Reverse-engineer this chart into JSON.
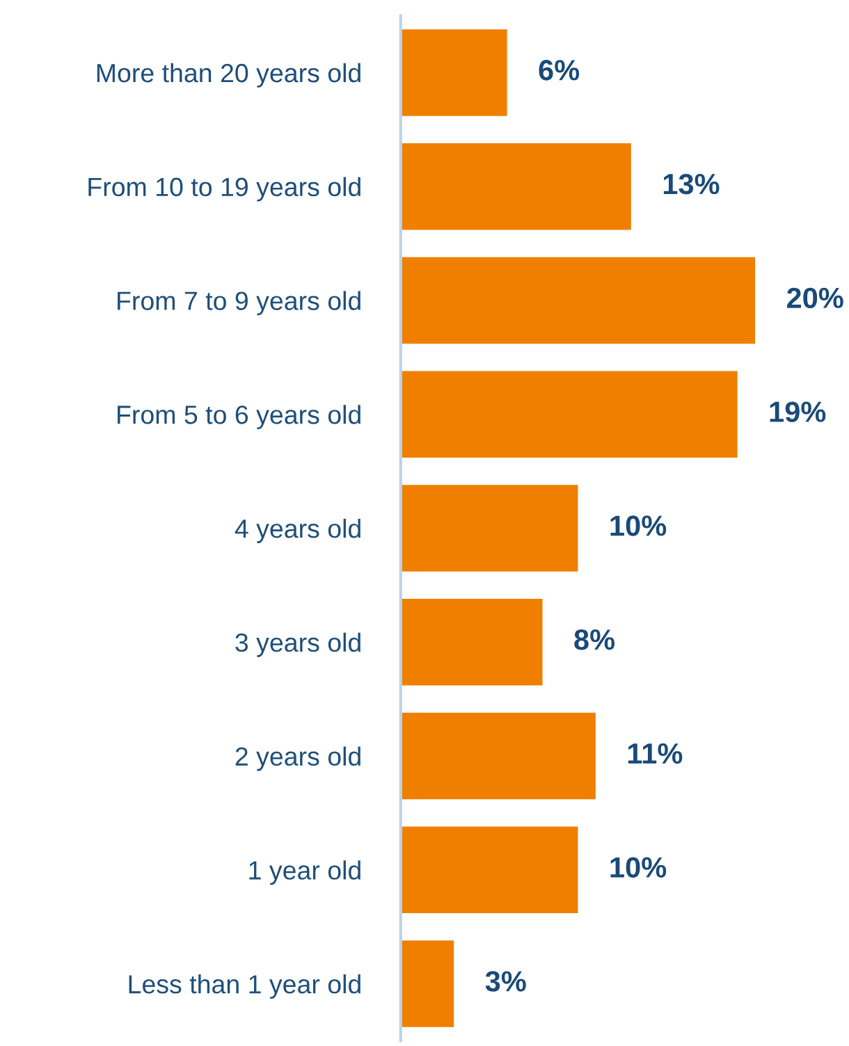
{
  "chart_data": {
    "type": "bar",
    "orientation": "horizontal",
    "categories": [
      "More than 20 years old",
      "From 10 to 19 years old",
      "From 7 to 9 years old",
      "From 5 to 6 years old",
      "4 years old",
      "3 years old",
      "2 years old",
      "1 year old",
      "Less than 1 year old"
    ],
    "values": [
      6,
      13,
      20,
      19,
      10,
      8,
      11,
      10,
      3
    ],
    "value_labels": [
      "6%",
      "13%",
      "20%",
      "19%",
      "10%",
      "8%",
      "11%",
      "10%",
      "3%"
    ],
    "color": "#f07f00",
    "grid": false,
    "legend": false,
    "tick_labels": "y"
  }
}
